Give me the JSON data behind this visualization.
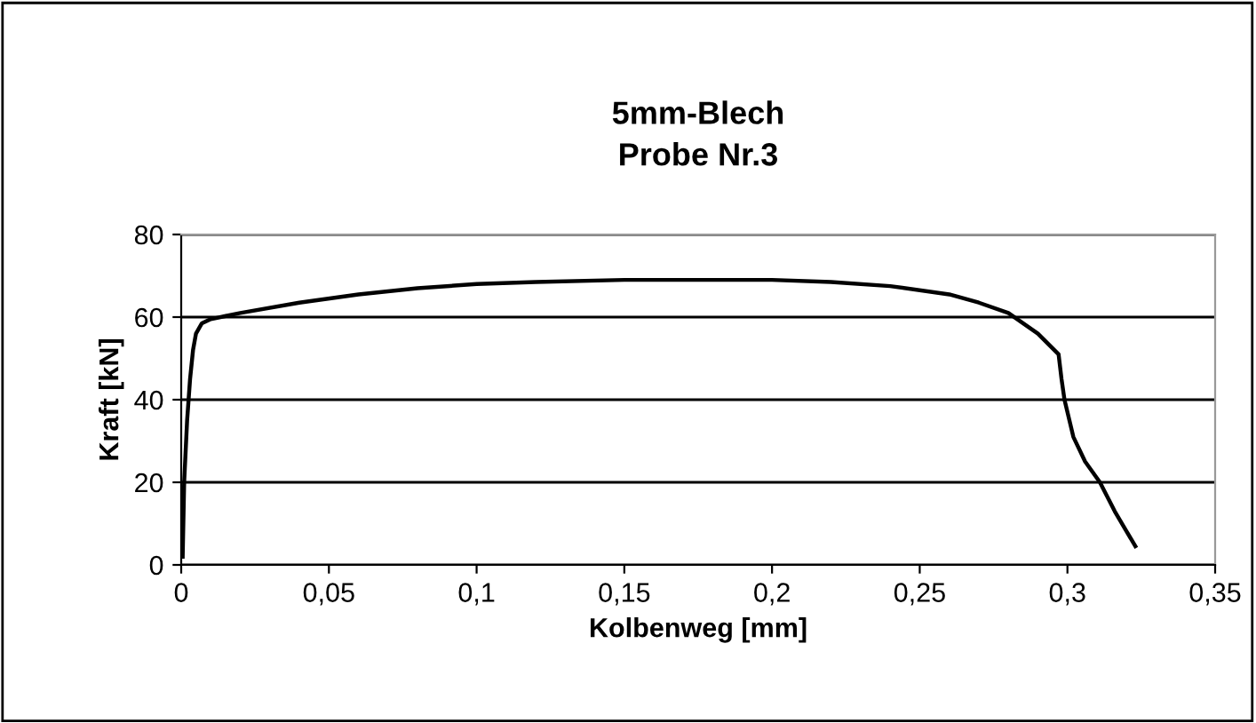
{
  "chart_data": {
    "type": "line",
    "title": "5mm-Blech\nProbe Nr.3",
    "xlabel": "Kolbenweg [mm]",
    "ylabel": "Kraft [kN]",
    "x": [
      0.0005,
      0.001,
      0.002,
      0.003,
      0.004,
      0.005,
      0.007,
      0.01,
      0.02,
      0.04,
      0.06,
      0.08,
      0.1,
      0.12,
      0.15,
      0.2,
      0.22,
      0.24,
      0.26,
      0.27,
      0.28,
      0.29,
      0.297,
      0.298,
      0.299,
      0.302,
      0.306,
      0.311,
      0.316,
      0.323
    ],
    "series": [
      {
        "color": "#000000",
        "values": [
          2,
          20,
          35,
          45,
          52,
          56,
          58.5,
          59.5,
          61,
          63.5,
          65.5,
          67,
          68,
          68.5,
          69,
          69,
          68.5,
          67.5,
          65.5,
          63.5,
          61,
          56,
          51,
          45,
          40,
          31,
          25,
          20,
          13,
          4.5
        ]
      }
    ],
    "xlim": [
      0,
      0.35
    ],
    "xticks": [
      {
        "value": 0,
        "label": "0"
      },
      {
        "value": 0.05,
        "label": "0,05"
      },
      {
        "value": 0.1,
        "label": "0,1"
      },
      {
        "value": 0.15,
        "label": "0,15"
      },
      {
        "value": 0.2,
        "label": "0,2"
      },
      {
        "value": 0.25,
        "label": "0,25"
      },
      {
        "value": 0.3,
        "label": "0,3"
      },
      {
        "value": 0.35,
        "label": "0,35"
      }
    ],
    "ylim": [
      0,
      80
    ],
    "yticks": [
      0,
      20,
      40,
      60,
      80
    ],
    "grid": "y",
    "legend": false,
    "marker": "none",
    "line_style": "solid"
  }
}
